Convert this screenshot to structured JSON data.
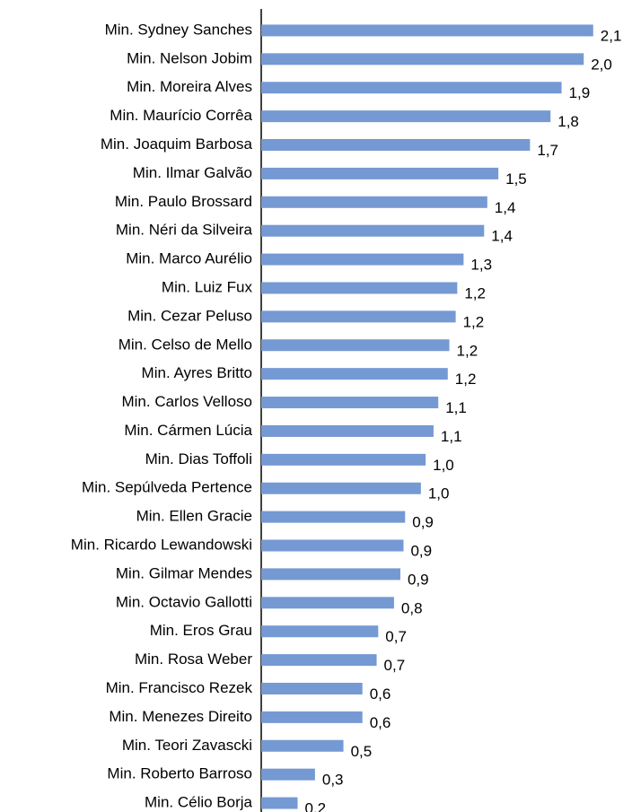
{
  "chart_data": {
    "type": "hbar",
    "categories": [
      "Min. Sydney Sanches",
      "Min. Nelson Jobim",
      "Min. Moreira Alves",
      "Min. Maurício Corrêa",
      "Min. Joaquim Barbosa",
      "Min. Ilmar Galvão",
      "Min. Paulo Brossard",
      "Min. Néri da Silveira",
      "Min. Marco Aurélio",
      "Min. Luiz Fux",
      "Min. Cezar Peluso",
      "Min. Celso de Mello",
      "Min. Ayres Britto",
      "Min. Carlos Velloso",
      "Min. Cármen Lúcia",
      "Min. Dias Toffoli",
      "Min. Sepúlveda Pertence",
      "Min. Ellen Gracie",
      "Min. Ricardo Lewandowski",
      "Min. Gilmar Mendes",
      "Min. Octavio Gallotti",
      "Min. Eros Grau",
      "Min. Rosa Weber",
      "Min. Francisco Rezek",
      "Min. Menezes Direito",
      "Min. Teori Zavascki",
      "Min. Roberto Barroso",
      "Min. Célio Borja"
    ],
    "values": [
      2.1,
      2.04,
      1.9,
      1.83,
      1.7,
      1.5,
      1.43,
      1.41,
      1.28,
      1.24,
      1.23,
      1.19,
      1.18,
      1.12,
      1.09,
      1.04,
      1.01,
      0.91,
      0.9,
      0.88,
      0.84,
      0.74,
      0.73,
      0.64,
      0.64,
      0.52,
      0.34,
      0.23
    ],
    "value_labels": [
      "2,1",
      "2,0",
      "1,9",
      "1,8",
      "1,7",
      "1,5",
      "1,4",
      "1,4",
      "1,3",
      "1,2",
      "1,2",
      "1,2",
      "1,2",
      "1,1",
      "1,1",
      "1,0",
      "1,0",
      "0,9",
      "0,9",
      "0,9",
      "0,8",
      "0,7",
      "0,7",
      "0,6",
      "0,6",
      "0,5",
      "0,3",
      "0,2"
    ],
    "color": "#7599d3",
    "xlim": [
      0,
      2.3
    ]
  }
}
